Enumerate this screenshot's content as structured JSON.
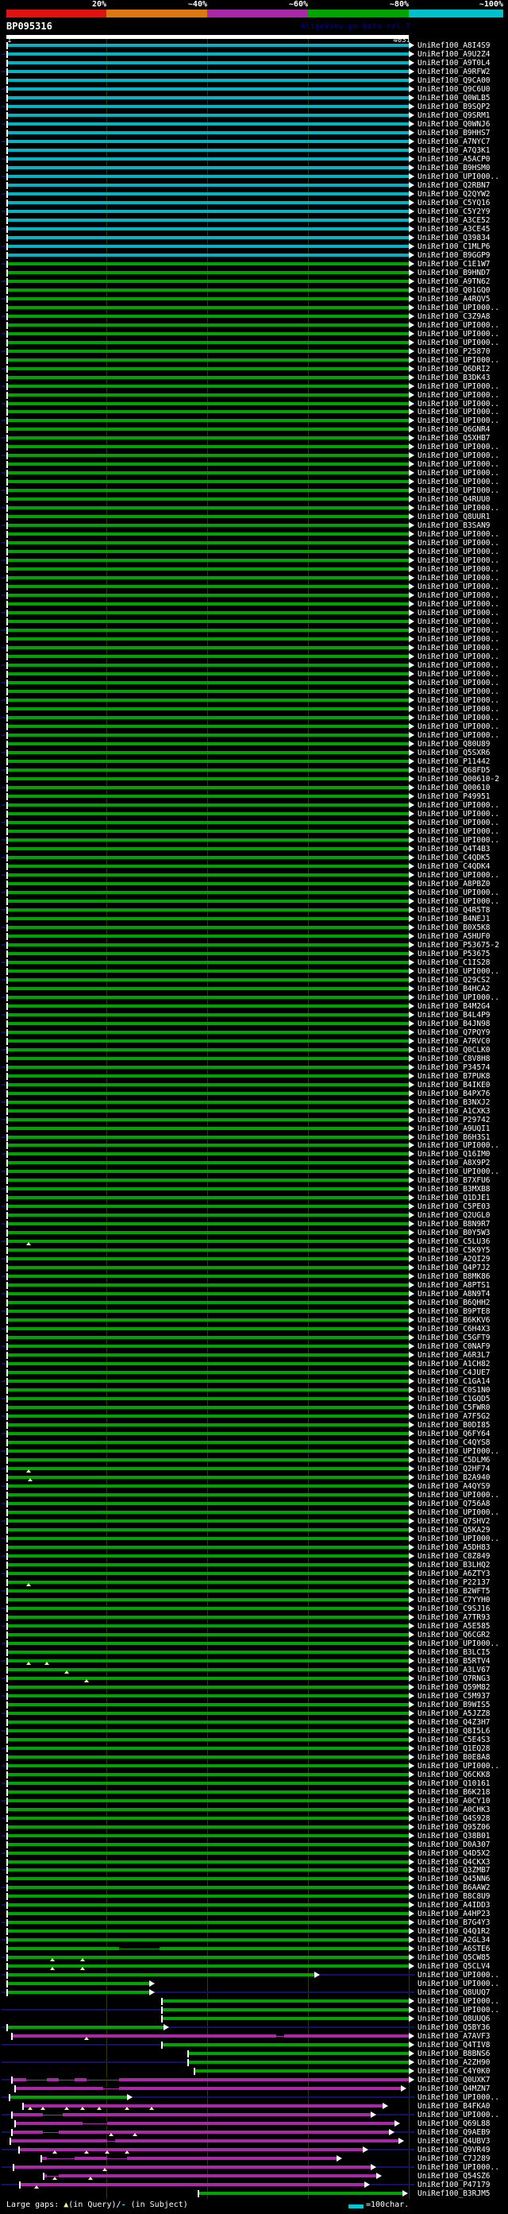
{
  "header": {
    "scale_labels": [
      "20%",
      "~40%",
      "~60%",
      "~80%",
      "~100%"
    ],
    "scale_colors": [
      "#e31212",
      "#dd7711",
      "#a828a8",
      "#00a400",
      "#00c0cc"
    ],
    "title": "BP095316",
    "app_note": "AlignView.pm Beta rel.7",
    "ruler": {
      "start_label": "1",
      "end_label": "4031"
    }
  },
  "legend": {
    "large_gaps_prefix": "Large gaps: ",
    "gap_query_symbol": "▲",
    "gap_query_text": "(in Query)/",
    "gap_subject_symbol": "-",
    "gap_subject_text": " (in Subject)",
    "scale_swatch_text": "=100char."
  },
  "chart_data": {
    "type": "bar",
    "title": "BP095316",
    "x_axis_note": "query position",
    "x_range": [
      1,
      4031
    ],
    "n_hits": 247,
    "identity_bins": [
      {
        "label": "20%",
        "color": "#e31212"
      },
      {
        "label": "~40%",
        "color": "#dd7711"
      },
      {
        "label": "~60%",
        "color": "#a828a8"
      },
      {
        "label": "~80%",
        "color": "#00a400"
      },
      {
        "label": "~100%",
        "color": "#00c0cc"
      }
    ],
    "label_prefix": "UniRef100_",
    "colors": {
      "c": "#00b4c4",
      "g": "#00a400",
      "m": "#a828a8"
    },
    "row_format": "[accession, color(c=~100% cyan | g=~80% green | m=~60% magenta), start_frac=0, end_frac=1, gap_markers_fracs=0, thin_span_fracs=0]",
    "rows": [
      [
        "A8I4S9",
        "c"
      ],
      [
        "A9U2Z4",
        "c"
      ],
      [
        "A9T0L4",
        "c"
      ],
      [
        "A9RFW2",
        "c"
      ],
      [
        "Q9CA00",
        "c"
      ],
      [
        "Q9C6U0",
        "c"
      ],
      [
        "Q0WLB5",
        "c"
      ],
      [
        "B9SQP2",
        "c"
      ],
      [
        "Q9SRM1",
        "c"
      ],
      [
        "Q0WNJ6",
        "c"
      ],
      [
        "B9HHS7",
        "c"
      ],
      [
        "A7NYC7",
        "c"
      ],
      [
        "A7Q3K1",
        "c"
      ],
      [
        "A5ACP0",
        "c"
      ],
      [
        "B9HSM0",
        "c"
      ],
      [
        "UPI000..",
        "c"
      ],
      [
        "Q2RBN7",
        "c"
      ],
      [
        "Q2QYW2",
        "c"
      ],
      [
        "C5YQ16",
        "c"
      ],
      [
        "C5Y2Y9",
        "c"
      ],
      [
        "A3CE52",
        "c"
      ],
      [
        "A3CE45",
        "c"
      ],
      [
        "Q39834",
        "c"
      ],
      [
        "C1MLP6",
        "c"
      ],
      [
        "B9GGP9",
        "c"
      ],
      [
        "C1E1W7",
        "g"
      ],
      [
        "B9HND7",
        "g"
      ],
      [
        "A9TN62",
        "g"
      ],
      [
        "Q01GQ0",
        "g"
      ],
      [
        "A4RQV5",
        "g"
      ],
      [
        "UPI000..",
        "g"
      ],
      [
        "C3Z9A8",
        "g"
      ],
      [
        "UPI000..",
        "g"
      ],
      [
        "UPI000..",
        "g"
      ],
      [
        "UPI000..",
        "g"
      ],
      [
        "P25870",
        "g"
      ],
      [
        "UPI000..",
        "g"
      ],
      [
        "Q6DRI2",
        "g"
      ],
      [
        "B3DK43",
        "g"
      ],
      [
        "UPI000..",
        "g"
      ],
      [
        "UPI000..",
        "g"
      ],
      [
        "UPI000..",
        "g"
      ],
      [
        "UPI000..",
        "g"
      ],
      [
        "UPI000..",
        "g"
      ],
      [
        "Q6GNR4",
        "g"
      ],
      [
        "Q5XHB7",
        "g"
      ],
      [
        "UPI000..",
        "g"
      ],
      [
        "UPI000..",
        "g"
      ],
      [
        "UPI000..",
        "g"
      ],
      [
        "UPI000..",
        "g"
      ],
      [
        "UPI000..",
        "g"
      ],
      [
        "UPI000..",
        "g"
      ],
      [
        "Q4RUU0",
        "g"
      ],
      [
        "UPI000..",
        "g"
      ],
      [
        "Q8UUR1",
        "g"
      ],
      [
        "B3SAN9",
        "g"
      ],
      [
        "UPI000..",
        "g"
      ],
      [
        "UPI000..",
        "g"
      ],
      [
        "UPI000..",
        "g"
      ],
      [
        "UPI000..",
        "g"
      ],
      [
        "UPI000..",
        "g"
      ],
      [
        "UPI000..",
        "g"
      ],
      [
        "UPI000..",
        "g"
      ],
      [
        "UPI000..",
        "g"
      ],
      [
        "UPI000..",
        "g"
      ],
      [
        "UPI000..",
        "g"
      ],
      [
        "UPI000..",
        "g"
      ],
      [
        "UPI000..",
        "g"
      ],
      [
        "UPI000..",
        "g"
      ],
      [
        "UPI000..",
        "g"
      ],
      [
        "UPI000..",
        "g"
      ],
      [
        "UPI000..",
        "g"
      ],
      [
        "UPI000..",
        "g"
      ],
      [
        "UPI000..",
        "g"
      ],
      [
        "UPI000..",
        "g"
      ],
      [
        "UPI000..",
        "g"
      ],
      [
        "UPI000..",
        "g"
      ],
      [
        "UPI000..",
        "g"
      ],
      [
        "UPI000..",
        "g"
      ],
      [
        "UPI000..",
        "g"
      ],
      [
        "Q80U89",
        "g"
      ],
      [
        "Q5SXR6",
        "g"
      ],
      [
        "P11442",
        "g"
      ],
      [
        "Q68FD5",
        "g"
      ],
      [
        "Q00610-2",
        "g"
      ],
      [
        "Q00610",
        "g"
      ],
      [
        "P49951",
        "g"
      ],
      [
        "UPI000..",
        "g"
      ],
      [
        "UPI000..",
        "g"
      ],
      [
        "UPI000..",
        "g"
      ],
      [
        "UPI000..",
        "g"
      ],
      [
        "UPI000..",
        "g"
      ],
      [
        "Q4T4B3",
        "g"
      ],
      [
        "C4QDK5",
        "g"
      ],
      [
        "C4QDK4",
        "g"
      ],
      [
        "UPI000..",
        "g"
      ],
      [
        "A8PBZ0",
        "g"
      ],
      [
        "UPI000..",
        "g"
      ],
      [
        "UPI000..",
        "g"
      ],
      [
        "Q4R5T8",
        "g"
      ],
      [
        "B4NEJ1",
        "g"
      ],
      [
        "B0X5K8",
        "g"
      ],
      [
        "A5HUF0",
        "g"
      ],
      [
        "P53675-2",
        "g"
      ],
      [
        "P53675",
        "g"
      ],
      [
        "C1IS28",
        "g"
      ],
      [
        "UPI000..",
        "g"
      ],
      [
        "Q29CS2",
        "g"
      ],
      [
        "B4HCA2",
        "g"
      ],
      [
        "UPI000..",
        "g"
      ],
      [
        "B4M2G4",
        "g"
      ],
      [
        "B4L4P9",
        "g"
      ],
      [
        "B4JN98",
        "g"
      ],
      [
        "Q7PQY9",
        "g"
      ],
      [
        "A7RVC0",
        "g"
      ],
      [
        "Q0CLK0",
        "g"
      ],
      [
        "C8V8H8",
        "g"
      ],
      [
        "P34574",
        "g"
      ],
      [
        "B7PUK8",
        "g"
      ],
      [
        "B4IKE0",
        "g"
      ],
      [
        "B4PX76",
        "g"
      ],
      [
        "B3NXJ2",
        "g"
      ],
      [
        "A1CXK3",
        "g"
      ],
      [
        "P29742",
        "g"
      ],
      [
        "A9UQI1",
        "g"
      ],
      [
        "B6H3S1",
        "g"
      ],
      [
        "UPI000..",
        "g"
      ],
      [
        "Q16IM0",
        "g"
      ],
      [
        "A8X9P2",
        "g"
      ],
      [
        "UPI000..",
        "g"
      ],
      [
        "B7XFU6",
        "g"
      ],
      [
        "B3MXB8",
        "g"
      ],
      [
        "Q1DJE1",
        "g"
      ],
      [
        "C5PE03",
        "g"
      ],
      [
        "Q2UGL0",
        "g"
      ],
      [
        "B8N9R7",
        "g"
      ],
      [
        "B0Y5W3",
        "g"
      ],
      [
        "C5LU36",
        "g",
        0,
        1,
        [
          0.055
        ]
      ],
      [
        "C5K9Y5",
        "g"
      ],
      [
        "A2QI29",
        "g"
      ],
      [
        "Q4P7J2",
        "g"
      ],
      [
        "B8MK86",
        "g"
      ],
      [
        "A8PTS1",
        "g"
      ],
      [
        "A8N9T4",
        "g"
      ],
      [
        "B6QHH2",
        "g"
      ],
      [
        "B9PTE8",
        "g"
      ],
      [
        "B6KKV6",
        "g"
      ],
      [
        "C6H4X3",
        "g"
      ],
      [
        "C5GFT9",
        "g"
      ],
      [
        "C0NAF9",
        "g"
      ],
      [
        "A6R3L7",
        "g"
      ],
      [
        "A1CH82",
        "g"
      ],
      [
        "C4JUE7",
        "g"
      ],
      [
        "C1GA14",
        "g"
      ],
      [
        "C0S1N0",
        "g"
      ],
      [
        "C1GQD5",
        "g"
      ],
      [
        "C5FWR0",
        "g"
      ],
      [
        "A7F5G2",
        "g"
      ],
      [
        "B0DI85",
        "g"
      ],
      [
        "Q6FY64",
        "g"
      ],
      [
        "C4QYS8",
        "g"
      ],
      [
        "UPI000..",
        "g"
      ],
      [
        "C5DLM6",
        "g"
      ],
      [
        "Q2HF74",
        "g",
        0,
        1,
        [
          0.055
        ]
      ],
      [
        "B2A940",
        "g",
        0,
        1,
        [
          0.06
        ]
      ],
      [
        "A4QYS9",
        "g"
      ],
      [
        "UPI000..",
        "g"
      ],
      [
        "Q756A8",
        "g"
      ],
      [
        "UPI000..",
        "g"
      ],
      [
        "Q7SHV2",
        "g"
      ],
      [
        "Q5KA29",
        "g"
      ],
      [
        "UPI000..",
        "g"
      ],
      [
        "A5DH83",
        "g"
      ],
      [
        "C8Z849",
        "g"
      ],
      [
        "B3LHQ2",
        "g"
      ],
      [
        "A6ZTY3",
        "g"
      ],
      [
        "P22137",
        "g",
        0,
        1,
        [
          0.055
        ]
      ],
      [
        "B2WFT5",
        "g"
      ],
      [
        "C7YYH0",
        "g"
      ],
      [
        "C9SJ16",
        "g"
      ],
      [
        "A7TR93",
        "g"
      ],
      [
        "A5E585",
        "g"
      ],
      [
        "Q6CGR2",
        "g"
      ],
      [
        "UPI000..",
        "g"
      ],
      [
        "B3LCI5",
        "g"
      ],
      [
        "B5RTV4",
        "g",
        0,
        1,
        [
          0.055,
          0.1
        ]
      ],
      [
        "A3LV67",
        "g",
        0,
        1,
        [
          0.15
        ]
      ],
      [
        "Q7RNG3",
        "g",
        0,
        1,
        [
          0.2
        ]
      ],
      [
        "Q59M82",
        "g"
      ],
      [
        "C5M937",
        "g"
      ],
      [
        "B9WIS5",
        "g"
      ],
      [
        "A5JZZ8",
        "g"
      ],
      [
        "Q4Z3H7",
        "g"
      ],
      [
        "Q8I5L6",
        "g"
      ],
      [
        "C5E4S3",
        "g"
      ],
      [
        "Q1EQ28",
        "g"
      ],
      [
        "B0E8A8",
        "g"
      ],
      [
        "UPI000..",
        "g"
      ],
      [
        "Q6CKK8",
        "g"
      ],
      [
        "Q10161",
        "g"
      ],
      [
        "B6K218",
        "g"
      ],
      [
        "A0CY10",
        "g"
      ],
      [
        "A0CHK3",
        "g"
      ],
      [
        "Q4S928",
        "g"
      ],
      [
        "Q95Z06",
        "g"
      ],
      [
        "Q38B01",
        "g"
      ],
      [
        "D0A307",
        "g"
      ],
      [
        "Q4D5X2",
        "g"
      ],
      [
        "Q4CKX3",
        "g"
      ],
      [
        "Q3ZMB7",
        "g"
      ],
      [
        "Q45NN6",
        "g"
      ],
      [
        "B6AAW2",
        "g"
      ],
      [
        "B8C8U9",
        "g"
      ],
      [
        "A4IDD3",
        "g"
      ],
      [
        "A4HP23",
        "g"
      ],
      [
        "B7G4Y3",
        "g"
      ],
      [
        "Q4Q1R2",
        "g"
      ],
      [
        "A2GL34",
        "g"
      ],
      [
        "A6STE6",
        "g",
        0,
        1,
        0,
        [
          [
            0.28,
            0.38
          ]
        ]
      ],
      [
        "Q5CW85",
        "g",
        0,
        1,
        [
          0.115,
          0.19
        ]
      ],
      [
        "Q5CLV4",
        "g",
        0,
        1,
        [
          0.115,
          0.19
        ]
      ],
      [
        "UPI000..",
        "g",
        0,
        0.765
      ],
      [
        "UPI000..",
        "g",
        0,
        0.355
      ],
      [
        "Q8UUQ7",
        "g",
        0,
        0.355
      ],
      [
        "UPI000..",
        "g",
        0.385,
        1
      ],
      [
        "UPI000..",
        "g",
        0.385,
        1
      ],
      [
        "Q8UUQ6",
        "g",
        0.385,
        1
      ],
      [
        "Q5BY36",
        "g",
        0,
        0.39
      ],
      [
        "A7AVF3",
        "m",
        0.012,
        1,
        [
          0.2
        ],
        [
          [
            0.67,
            0.69
          ]
        ]
      ],
      [
        "Q4TIV8",
        "g",
        0.385,
        1
      ],
      [
        "B8BNS6",
        "g",
        0.45,
        1
      ],
      [
        "A2ZH90",
        "g",
        0.45,
        1
      ],
      [
        "C4Y0K0",
        "g",
        0.465,
        1
      ],
      [
        "Q0UXK7",
        "m",
        0.012,
        1,
        0,
        [
          [
            0.05,
            0.1
          ],
          [
            0.13,
            0.17
          ],
          [
            0.2,
            0.28
          ]
        ]
      ],
      [
        "Q4MZN7",
        "m",
        0.02,
        0.98,
        0,
        [
          [
            0.24,
            0.28
          ]
        ]
      ],
      [
        "UPI000..",
        "g",
        0.005,
        0.3
      ],
      [
        "B4FKA0",
        "m",
        0.04,
        0.935,
        [
          0.06,
          0.09,
          0.15,
          0.19,
          0.23,
          0.3,
          0.36
        ]
      ],
      [
        "UPI000..",
        "m",
        0.012,
        0.905,
        0,
        [
          [
            0.09,
            0.14
          ]
        ]
      ],
      [
        "Q69L88",
        "m",
        0.02,
        0.965,
        0,
        [
          [
            0.19,
            0.25
          ]
        ]
      ],
      [
        "Q9AEB9",
        "m",
        0.012,
        0.95,
        [
          0.26,
          0.32
        ],
        [
          [
            0.09,
            0.13
          ]
        ]
      ],
      [
        "Q4UBV3",
        "m",
        0.008,
        0.975,
        0,
        [
          [
            0.25,
            0.27
          ]
        ]
      ],
      [
        "Q9VR49",
        "m",
        0.03,
        0.885,
        [
          0.12,
          0.2,
          0.25,
          0.3
        ]
      ],
      [
        "C7J289",
        "m",
        0.085,
        0.82,
        0,
        [
          [
            0.1,
            0.17
          ],
          [
            0.25,
            0.3
          ]
        ]
      ],
      [
        "UPI000..",
        "m",
        0.016,
        0.905,
        [
          0.245
        ]
      ],
      [
        "Q54SZ6",
        "m",
        0.09,
        0.92,
        [
          0.12,
          0.21
        ],
        [
          [
            0.1,
            0.13
          ]
        ]
      ],
      [
        "P47179",
        "m",
        0.032,
        0.89,
        [
          0.075
        ]
      ],
      [
        "B3RJM5",
        "g",
        0.475,
        0.985
      ]
    ]
  }
}
